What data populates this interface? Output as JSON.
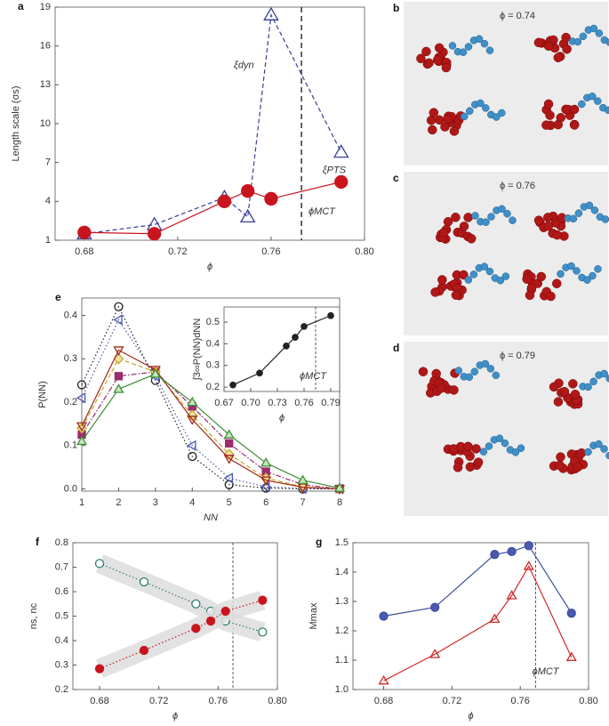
{
  "chart_data": [
    {
      "type": "line",
      "panel": "a",
      "xlabel": "ϕ",
      "ylabel": "Length scale (σs)",
      "xlim": [
        0.6675,
        0.8
      ],
      "xticks": [
        0.68,
        0.72,
        0.76,
        {
          "value": 0.8,
          "label": "0.80"
        }
      ],
      "ylim": [
        1,
        19
      ],
      "yticks": [
        1,
        4,
        7,
        10,
        13,
        16,
        19
      ],
      "vline": 0.773,
      "annotations": [
        "ξdyn",
        "ξPTS",
        "ϕMCT"
      ],
      "series": [
        {
          "color": "#3a3f9a",
          "marker": "triangle",
          "marker_fill": "none",
          "dash": "dashed",
          "x": [
            0.68,
            0.71,
            0.74,
            0.75,
            0.76,
            0.79
          ],
          "values": [
            1.5,
            2.2,
            4.3,
            2.8,
            18.4,
            7.8
          ]
        },
        {
          "color": "#c8141e",
          "marker": "circle",
          "marker_fill": "#c8141e",
          "dash": "solid",
          "x": [
            0.68,
            0.71,
            0.74,
            0.75,
            0.76,
            0.79
          ],
          "values": [
            1.6,
            1.5,
            4.0,
            4.8,
            4.2,
            5.5
          ]
        }
      ]
    },
    {
      "type": "line",
      "panel": "e",
      "xlabel": "NN",
      "ylabel": "P(NN)",
      "x": [
        1,
        2,
        3,
        4,
        5,
        6,
        7,
        8
      ],
      "xlim": [
        1,
        8
      ],
      "xticks": [
        1,
        2,
        3,
        4,
        5,
        6,
        7,
        8
      ],
      "ylim": [
        -0.005,
        0.44
      ],
      "yticks": [
        {
          "value": 0,
          "label": "0.0"
        },
        0.1,
        0.2,
        0.3,
        0.4
      ],
      "series": [
        {
          "color": "#222222",
          "marker": "circle",
          "marker_fill": "none",
          "dash": "dotted",
          "values": [
            0.24,
            0.42,
            0.25,
            0.075,
            0.01,
            0.002,
            0,
            0
          ]
        },
        {
          "color": "#4a55b0",
          "marker": "tri-left",
          "marker_fill": "none",
          "dash": "dotted",
          "values": [
            0.21,
            0.39,
            0.26,
            0.1,
            0.025,
            0.005,
            0.001,
            0
          ]
        },
        {
          "color": "#9b2c6e",
          "marker": "square",
          "marker_fill": "#9b2c6e",
          "dash": "dashdot",
          "values": [
            0.125,
            0.26,
            0.27,
            0.19,
            0.105,
            0.04,
            0.01,
            0
          ]
        },
        {
          "color": "#c8a42a",
          "marker": "diamond",
          "marker_fill": "#f0e2a8",
          "dash": "dashed",
          "values": [
            0.14,
            0.3,
            0.27,
            0.17,
            0.08,
            0.025,
            0.005,
            0
          ]
        },
        {
          "color": "#a02818",
          "marker": "tri-down",
          "marker_fill": "none",
          "dash": "solid",
          "values": [
            0.145,
            0.32,
            0.275,
            0.16,
            0.07,
            0.02,
            0.004,
            0
          ]
        },
        {
          "color": "#3f8f35",
          "marker": "triangle",
          "marker_fill": "#c8e6c0",
          "dash": "solid",
          "values": [
            0.11,
            0.23,
            0.265,
            0.2,
            0.125,
            0.06,
            0.02,
            0.002
          ]
        }
      ]
    },
    {
      "type": "line",
      "xlabel": "ϕ",
      "ylabel": "∫3∞P(NN)dNN",
      "xlim": [
        0.67,
        0.8
      ],
      "xticks": [
        0.67,
        {
          "value": 0.7,
          "label": "0.70"
        },
        0.73,
        0.76,
        0.79
      ],
      "ylim": [
        0.18,
        0.57
      ],
      "yticks": [
        0.2,
        0.3,
        0.4,
        0.5
      ],
      "vline": 0.773,
      "annotations": [
        "ϕMCT"
      ],
      "series": [
        {
          "color": "#222222",
          "marker": "circle",
          "marker_fill": "#222222",
          "dash": "solid",
          "x": [
            0.68,
            0.71,
            0.74,
            0.75,
            0.76,
            0.79
          ],
          "values": [
            0.21,
            0.265,
            0.39,
            0.43,
            0.48,
            0.53
          ]
        }
      ]
    },
    {
      "type": "line",
      "panel": "f",
      "xlabel": "ϕ",
      "ylabel": "ns, nc",
      "band": true,
      "xlim": [
        0.662,
        0.8
      ],
      "xticks": [
        0.68,
        0.72,
        0.76,
        {
          "value": 0.8,
          "label": "0.80"
        }
      ],
      "ylim": [
        0.2,
        0.8
      ],
      "yticks": [
        0.2,
        0.3,
        0.4,
        0.5,
        0.6,
        0.7,
        0.8
      ],
      "vline": 0.77,
      "series": [
        {
          "color": "#2e7d6e",
          "marker": "circle",
          "marker_fill": "#ffffff",
          "dash": "dotted",
          "x": [
            0.68,
            0.71,
            0.745,
            0.755,
            0.765,
            0.79
          ],
          "values": [
            0.715,
            0.64,
            0.55,
            0.52,
            0.48,
            0.435
          ]
        },
        {
          "color": "#c8141e",
          "marker": "circle",
          "marker_fill": "#c8141e",
          "dash": "dotted",
          "x": [
            0.68,
            0.71,
            0.745,
            0.755,
            0.765,
            0.79
          ],
          "values": [
            0.285,
            0.36,
            0.45,
            0.48,
            0.52,
            0.565
          ]
        }
      ]
    },
    {
      "type": "line",
      "panel": "g",
      "xlabel": "ϕ",
      "ylabel": "Mmax",
      "xlim": [
        0.662,
        0.8
      ],
      "xticks": [
        0.68,
        0.72,
        0.76,
        {
          "value": 0.8,
          "label": "0.80"
        }
      ],
      "ylim": [
        1,
        1.5
      ],
      "yticks": [
        {
          "value": 1,
          "label": "1.0"
        },
        1.1,
        1.2,
        1.3,
        1.4,
        1.5
      ],
      "vline": 0.769,
      "annotations": [
        "ϕMCT"
      ],
      "series": [
        {
          "color": "#3f4ea0",
          "marker": "circle",
          "marker_fill": "#4a5ab0",
          "dash": "solid",
          "x": [
            0.68,
            0.71,
            0.745,
            0.755,
            0.765,
            0.79
          ],
          "values": [
            1.25,
            1.28,
            1.46,
            1.47,
            1.49,
            1.26
          ]
        },
        {
          "color": "#d0282a",
          "marker": "triangle",
          "marker_fill": "none",
          "dash": "solid",
          "x": [
            0.68,
            0.71,
            0.745,
            0.755,
            0.765,
            0.79
          ],
          "values": [
            1.03,
            1.12,
            1.24,
            1.32,
            1.42,
            1.11
          ]
        }
      ]
    }
  ],
  "images": [
    {
      "panel": "b",
      "caption": "ϕ = 0.74"
    },
    {
      "panel": "c",
      "caption": "ϕ = 0.76"
    },
    {
      "panel": "d",
      "caption": "ϕ = 0.79"
    }
  ]
}
